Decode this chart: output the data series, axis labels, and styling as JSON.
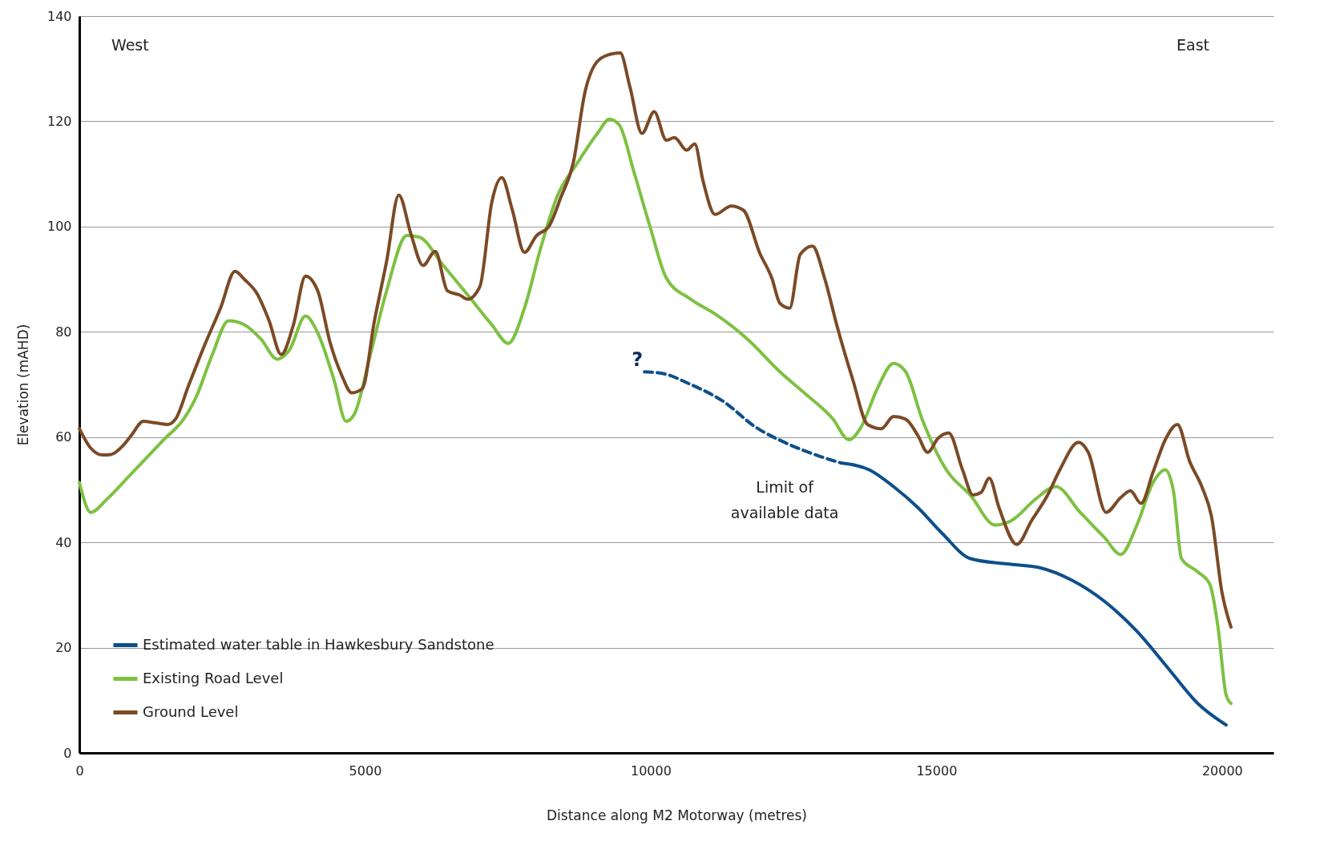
{
  "chart_data": {
    "type": "line",
    "xlabel": "Distance along M2 Motorway (metres)",
    "ylabel": "Elevation (mAHD)",
    "xlim": [
      0,
      20900
    ],
    "xticks": [
      0,
      5000,
      10000,
      15000,
      20000
    ],
    "ylim": [
      0,
      140
    ],
    "yticks": [
      0,
      20,
      40,
      60,
      80,
      100,
      120,
      140
    ],
    "grid": "y",
    "legend": "bottom left",
    "line_style": "solid",
    "marker": "none",
    "annotations": [
      "West",
      "East",
      {
        "text": "?",
        "x": 9890,
        "y": 72.4
      },
      {
        "text": "Limit of available data",
        "x": 13327,
        "y": 55.1
      }
    ],
    "series": [
      {
        "name": "Estimated water table in Hawkesbury Sandstone",
        "color": "#0d4f8b",
        "x": [
          13327,
          13824,
          14250,
          14676,
          15102,
          15599,
          16238,
          16806,
          17374,
          17942,
          18510,
          19077,
          19574,
          20071
        ],
        "values": [
          55.1,
          53.8,
          50.6,
          46.6,
          41.7,
          36.9,
          35.9,
          35.2,
          32.8,
          28.8,
          23.1,
          15.8,
          9.4,
          5.3
        ]
      },
      {
        "name": "Existing Road Level",
        "color": "#7dc142",
        "x": [
          0,
          199,
          482,
          908,
          1476,
          1831,
          2044,
          2328,
          2612,
          2895,
          3179,
          3463,
          3675,
          3959,
          4172,
          4456,
          4669,
          4810,
          5094,
          5378,
          5733,
          5946,
          6371,
          6797,
          7222,
          7506,
          7790,
          8074,
          8358,
          8713,
          9068,
          9280,
          9450,
          9706,
          9990,
          10274,
          10700,
          11126,
          11694,
          12262,
          12688,
          13185,
          13469,
          13682,
          13966,
          14250,
          14463,
          14747,
          15173,
          15599,
          16025,
          16309,
          16735,
          17090,
          17516,
          17942,
          18226,
          18510,
          18794,
          19006,
          19148,
          19290,
          19574,
          19787,
          19929,
          20071,
          20156
        ],
        "values": [
          51.4,
          45.7,
          48.2,
          53,
          59.5,
          63.5,
          67.6,
          75.7,
          82.1,
          81.3,
          78.6,
          74.8,
          76.5,
          83,
          79.8,
          70.9,
          63,
          64.3,
          75.7,
          87.8,
          98.3,
          98,
          92.6,
          87,
          81.3,
          77.8,
          84.5,
          95.9,
          105.6,
          112,
          117.7,
          120.4,
          119.3,
          110.4,
          99.9,
          90.2,
          86.2,
          83.4,
          78.6,
          72.4,
          68.4,
          63.5,
          59.5,
          61.9,
          69.2,
          74,
          72.4,
          63.5,
          53.8,
          48.9,
          43.3,
          44.1,
          48.2,
          50.6,
          45.7,
          40.9,
          37.7,
          43.3,
          51.4,
          53.8,
          49.8,
          36.9,
          34.4,
          32,
          23.9,
          11,
          9.4
        ]
      },
      {
        "name": "Ground Level",
        "color": "#7b4a26",
        "x": [
          0,
          199,
          411,
          553,
          766,
          908,
          1121,
          1334,
          1547,
          1689,
          1902,
          2186,
          2470,
          2725,
          2895,
          3108,
          3321,
          3533,
          3746,
          3959,
          4172,
          4385,
          4598,
          4768,
          4952,
          5165,
          5378,
          5591,
          5803,
          6016,
          6229,
          6442,
          6655,
          6797,
          7010,
          7222,
          7393,
          7577,
          7790,
          8003,
          8216,
          8429,
          8642,
          8855,
          9068,
          9280,
          9465,
          9635,
          9848,
          10061,
          10274,
          10416,
          10629,
          10771,
          10913,
          11126,
          11410,
          11623,
          11907,
          12120,
          12262,
          12432,
          12617,
          12830,
          13043,
          13256,
          13540,
          13795,
          14037,
          14250,
          14463,
          14676,
          14846,
          15031,
          15215,
          15457,
          15641,
          15783,
          15925,
          16096,
          16408,
          16664,
          16948,
          17161,
          17487,
          17658,
          17970,
          18226,
          18396,
          18581,
          18794,
          19006,
          19219,
          19432,
          19645,
          19815,
          20000,
          20156
        ],
        "values": [
          61.6,
          57.9,
          56.6,
          56.7,
          58.4,
          60.3,
          63,
          62.7,
          62.4,
          63.5,
          69.5,
          77.3,
          84.5,
          91.5,
          89.9,
          87.3,
          82.1,
          75.7,
          81.3,
          90.6,
          87.8,
          78.1,
          71.6,
          68.4,
          69.2,
          82.1,
          93.4,
          106,
          98.6,
          92.6,
          95.3,
          87.8,
          87,
          86.2,
          88.6,
          104.8,
          109.3,
          103.2,
          95.1,
          98.3,
          100,
          105.6,
          112,
          125.8,
          131.4,
          132.7,
          133,
          126.6,
          117.7,
          121.8,
          116.4,
          116.9,
          114.5,
          115.7,
          108.8,
          102.3,
          103.9,
          103.1,
          95,
          90.2,
          85.4,
          84.5,
          94.7,
          96.3,
          90.2,
          81.3,
          70.8,
          62.4,
          61.6,
          63.9,
          63.4,
          60.3,
          57.1,
          59.8,
          60.8,
          53.8,
          49,
          49.5,
          52.2,
          46.6,
          39.6,
          44.1,
          49,
          53.8,
          59,
          57.1,
          45.7,
          48.5,
          49.8,
          47.4,
          53.4,
          59.5,
          62.4,
          55.4,
          50.6,
          44.9,
          30.4,
          23.9
        ]
      },
      {
        "color": "#0d4f8b",
        "line_style": "dashed",
        "x": [
          9890,
          10203,
          10700,
          11268,
          11836,
          12404,
          12972,
          13327
        ],
        "values": [
          72.4,
          72.1,
          70,
          66.8,
          61.9,
          58.7,
          56.3,
          55.1
        ]
      }
    ]
  }
}
